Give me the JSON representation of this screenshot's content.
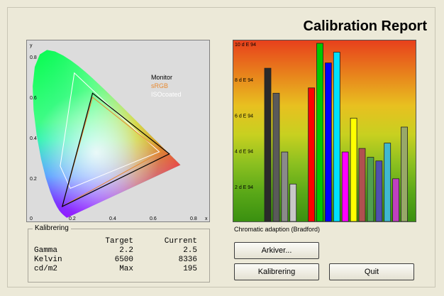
{
  "header": {
    "title": "Calibration Report"
  },
  "cie": {
    "axis_y_label": "y",
    "axis_x_label": "x",
    "y_ticks": [
      "0.8",
      "0.6",
      "0.4",
      "0.2",
      "0"
    ],
    "x_ticks": [
      "0.2",
      "0.4",
      "0.6",
      "0.8"
    ],
    "legend": [
      {
        "label": "Monitor",
        "color": "#000000"
      },
      {
        "label": "sRGB",
        "color": "#e88a30"
      },
      {
        "label": "ISOcoated",
        "color": "#ffffff"
      }
    ],
    "gamuts": {
      "monitor": [
        [
          0.68,
          0.32
        ],
        [
          0.3,
          0.62
        ],
        [
          0.15,
          0.06
        ]
      ],
      "srgb": [
        [
          0.64,
          0.33
        ],
        [
          0.3,
          0.6
        ],
        [
          0.15,
          0.06
        ]
      ],
      "isocoated": [
        [
          0.63,
          0.33
        ],
        [
          0.53,
          0.42
        ],
        [
          0.21,
          0.72
        ],
        [
          0.14,
          0.26
        ],
        [
          0.19,
          0.15
        ]
      ]
    }
  },
  "chart_data": {
    "type": "bar",
    "caption": "Chromatic adaption (Bradford)",
    "y_tick_labels": [
      "10 d E 94",
      "8 d E 94",
      "6 d E 94",
      "4 d E 94",
      "2 d E 94"
    ],
    "y_ticks": [
      10,
      8,
      6,
      4,
      2
    ],
    "ylim": [
      0,
      10
    ],
    "bars": [
      {
        "value": 8.6,
        "color": "#2a2a2a"
      },
      {
        "value": 7.2,
        "color": "#5a5a5a"
      },
      {
        "value": 3.9,
        "color": "#8a8a8a"
      },
      {
        "value": 2.1,
        "color": "#c8c8c8"
      },
      {
        "value": 7.5,
        "color": "#ff0000"
      },
      {
        "value": 10.0,
        "color": "#00c800"
      },
      {
        "value": 8.9,
        "color": "#0000ff"
      },
      {
        "value": 9.5,
        "color": "#00e0ff"
      },
      {
        "value": 3.9,
        "color": "#ff00ff"
      },
      {
        "value": 5.8,
        "color": "#ffff00"
      },
      {
        "value": 4.1,
        "color": "#b05050"
      },
      {
        "value": 3.6,
        "color": "#50a050"
      },
      {
        "value": 3.4,
        "color": "#5050b0"
      },
      {
        "value": 4.4,
        "color": "#40b8d0"
      },
      {
        "value": 2.4,
        "color": "#c040c0"
      },
      {
        "value": 5.3,
        "color": "#98a868"
      }
    ]
  },
  "kalibrering": {
    "legend": "Kalibrering",
    "headers": [
      "",
      "Target",
      "Current"
    ],
    "rows": [
      {
        "label": "Gamma",
        "target": "2.2",
        "current": "2.5"
      },
      {
        "label": "Kelvin",
        "target": "6500",
        "current": "8336"
      },
      {
        "label": "cd/m2",
        "target": "Max",
        "current": "195"
      }
    ]
  },
  "buttons": {
    "arkiver": "Arkiver...",
    "kalibrering": "Kalibrering",
    "quit": "Quit"
  }
}
